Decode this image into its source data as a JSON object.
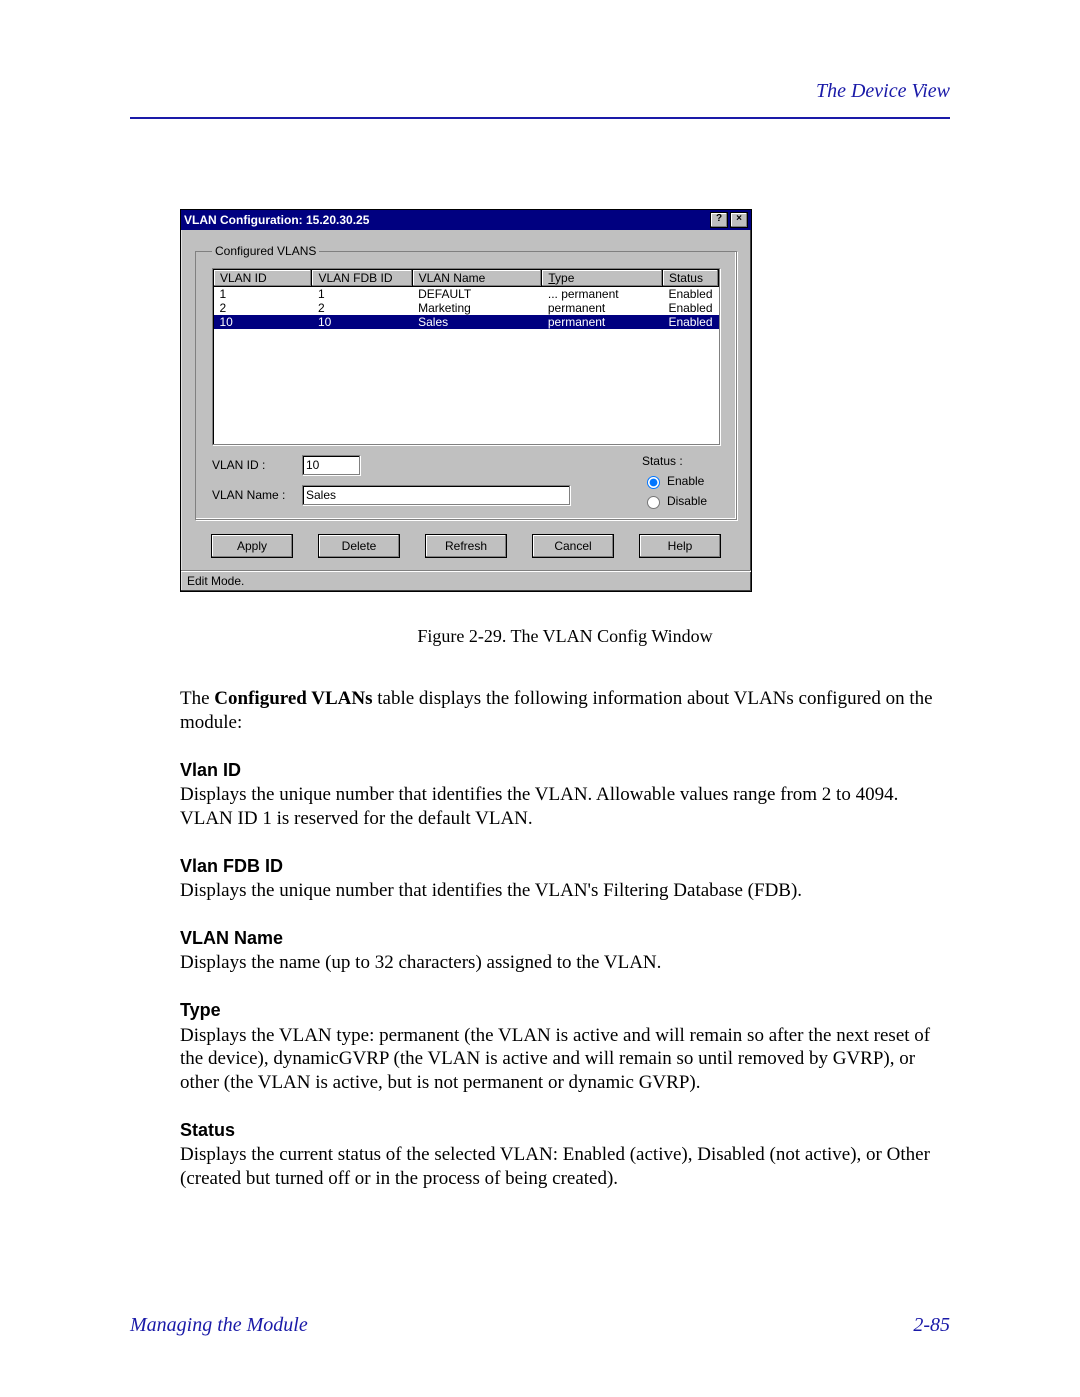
{
  "header": {
    "right": "The Device View"
  },
  "dialog": {
    "title": "VLAN Configuration: 15.20.30.25",
    "help_glyph": "?",
    "close_glyph": "×",
    "group_legend": "Configured VLANS",
    "columns": [
      "VLAN ID",
      "VLAN FDB ID",
      "VLAN Name",
      "Type",
      "Status"
    ],
    "col_widths": [
      "88px",
      "88px",
      "120px",
      "110px",
      "auto"
    ],
    "rows": [
      {
        "cells": [
          "1",
          "1",
          "DEFAULT",
          "... permanent",
          "Enabled"
        ],
        "selected": false
      },
      {
        "cells": [
          "2",
          "2",
          "Marketing",
          "permanent",
          "Enabled"
        ],
        "selected": false
      },
      {
        "cells": [
          "10",
          "10",
          "Sales",
          "permanent",
          "Enabled"
        ],
        "selected": true
      }
    ],
    "vlan_id_label": "VLAN ID :",
    "vlan_id_value": "10",
    "vlan_name_label": "VLAN Name :",
    "vlan_name_value": "Sales",
    "status_label": "Status :",
    "status_enable": "Enable",
    "status_disable": "Disable",
    "status_selected": "enable",
    "buttons": {
      "apply": "Apply",
      "delete": "Delete",
      "refresh": "Refresh",
      "cancel": "Cancel",
      "help": "Help"
    },
    "statusbar": "Edit Mode."
  },
  "caption": "Figure 2-29.  The VLAN Config Window",
  "intro_pre": "The ",
  "intro_bold": "Configured VLANs",
  "intro_post": " table displays the following information about VLANs configured on the module:",
  "sections": {
    "vlan_id": {
      "h": "Vlan ID",
      "p": "Displays the unique number that identifies the VLAN. Allowable values range from 2 to 4094. VLAN ID 1 is reserved for the default VLAN."
    },
    "vlan_fdb_id": {
      "h": "Vlan FDB ID",
      "p": "Displays the unique number that identifies the VLAN's Filtering Database (FDB)."
    },
    "vlan_name": {
      "h": "VLAN Name",
      "p": "Displays the name (up to 32 characters) assigned to the VLAN."
    },
    "type": {
      "h": "Type",
      "p": "Displays the VLAN type: permanent (the VLAN is active and will remain so after the next reset of the device), dynamicGVRP (the VLAN is active and will remain so until removed by GVRP), or other (the VLAN is active, but is not permanent or dynamic GVRP)."
    },
    "status": {
      "h": "Status",
      "p": "Displays the current status of the selected VLAN: Enabled (active), Disabled (not active), or Other (created but turned off or in the process of being created)."
    }
  },
  "footer": {
    "left": "Managing the Module",
    "right": "2-85"
  },
  "colors": {
    "brand": "#1a1aa8",
    "win_bg": "#c0c0c0",
    "titlebar": "#000080",
    "select_row": "#000080"
  }
}
